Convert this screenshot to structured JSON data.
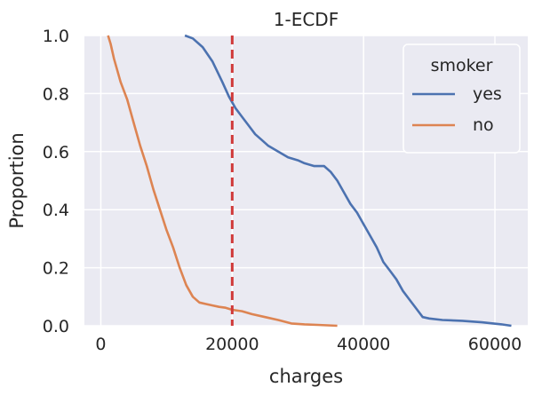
{
  "chart_data": {
    "type": "line",
    "title": "1-ECDF",
    "xlabel": "charges",
    "ylabel": "Proportion",
    "xlim": [
      -2500,
      65000
    ],
    "ylim": [
      0.0,
      1.0
    ],
    "xticks": [
      0,
      20000,
      40000,
      60000
    ],
    "yticks": [
      0.0,
      0.2,
      0.4,
      0.6,
      0.8,
      1.0
    ],
    "grid": true,
    "legend": {
      "title": "smoker",
      "position": "top-right"
    },
    "series": [
      {
        "name": "yes",
        "color": "#4c72b0",
        "points": [
          [
            12800,
            1.0
          ],
          [
            14000,
            0.99
          ],
          [
            15500,
            0.96
          ],
          [
            17000,
            0.91
          ],
          [
            18500,
            0.84
          ],
          [
            19500,
            0.79
          ],
          [
            20500,
            0.75
          ],
          [
            21500,
            0.72
          ],
          [
            22500,
            0.69
          ],
          [
            23500,
            0.66
          ],
          [
            24500,
            0.64
          ],
          [
            25500,
            0.62
          ],
          [
            27000,
            0.6
          ],
          [
            28500,
            0.58
          ],
          [
            30000,
            0.57
          ],
          [
            31000,
            0.56
          ],
          [
            32500,
            0.55
          ],
          [
            34000,
            0.55
          ],
          [
            35000,
            0.53
          ],
          [
            36000,
            0.5
          ],
          [
            37000,
            0.46
          ],
          [
            38000,
            0.42
          ],
          [
            39000,
            0.39
          ],
          [
            40000,
            0.35
          ],
          [
            41000,
            0.31
          ],
          [
            42000,
            0.27
          ],
          [
            43000,
            0.22
          ],
          [
            44000,
            0.19
          ],
          [
            45000,
            0.16
          ],
          [
            46000,
            0.12
          ],
          [
            47000,
            0.09
          ],
          [
            48000,
            0.06
          ],
          [
            49000,
            0.03
          ],
          [
            50000,
            0.025
          ],
          [
            52000,
            0.02
          ],
          [
            55000,
            0.017
          ],
          [
            58000,
            0.012
          ],
          [
            61000,
            0.005
          ],
          [
            62500,
            0.0
          ]
        ]
      },
      {
        "name": "no",
        "color": "#dd8452",
        "points": [
          [
            1100,
            1.0
          ],
          [
            1500,
            0.97
          ],
          [
            2000,
            0.92
          ],
          [
            2500,
            0.88
          ],
          [
            3000,
            0.84
          ],
          [
            4000,
            0.78
          ],
          [
            5000,
            0.7
          ],
          [
            6000,
            0.62
          ],
          [
            7000,
            0.55
          ],
          [
            8000,
            0.47
          ],
          [
            9000,
            0.4
          ],
          [
            10000,
            0.33
          ],
          [
            11000,
            0.27
          ],
          [
            12000,
            0.2
          ],
          [
            13000,
            0.14
          ],
          [
            14000,
            0.1
          ],
          [
            15000,
            0.08
          ],
          [
            16000,
            0.075
          ],
          [
            17000,
            0.07
          ],
          [
            18000,
            0.065
          ],
          [
            19000,
            0.062
          ],
          [
            20000,
            0.055
          ],
          [
            21500,
            0.05
          ],
          [
            23000,
            0.04
          ],
          [
            25000,
            0.03
          ],
          [
            27000,
            0.02
          ],
          [
            29000,
            0.008
          ],
          [
            31000,
            0.005
          ],
          [
            33000,
            0.003
          ],
          [
            36000,
            0.0
          ]
        ]
      }
    ],
    "reference_line": {
      "x": 20000,
      "color": "#d03a3a",
      "style": "dashed"
    }
  }
}
